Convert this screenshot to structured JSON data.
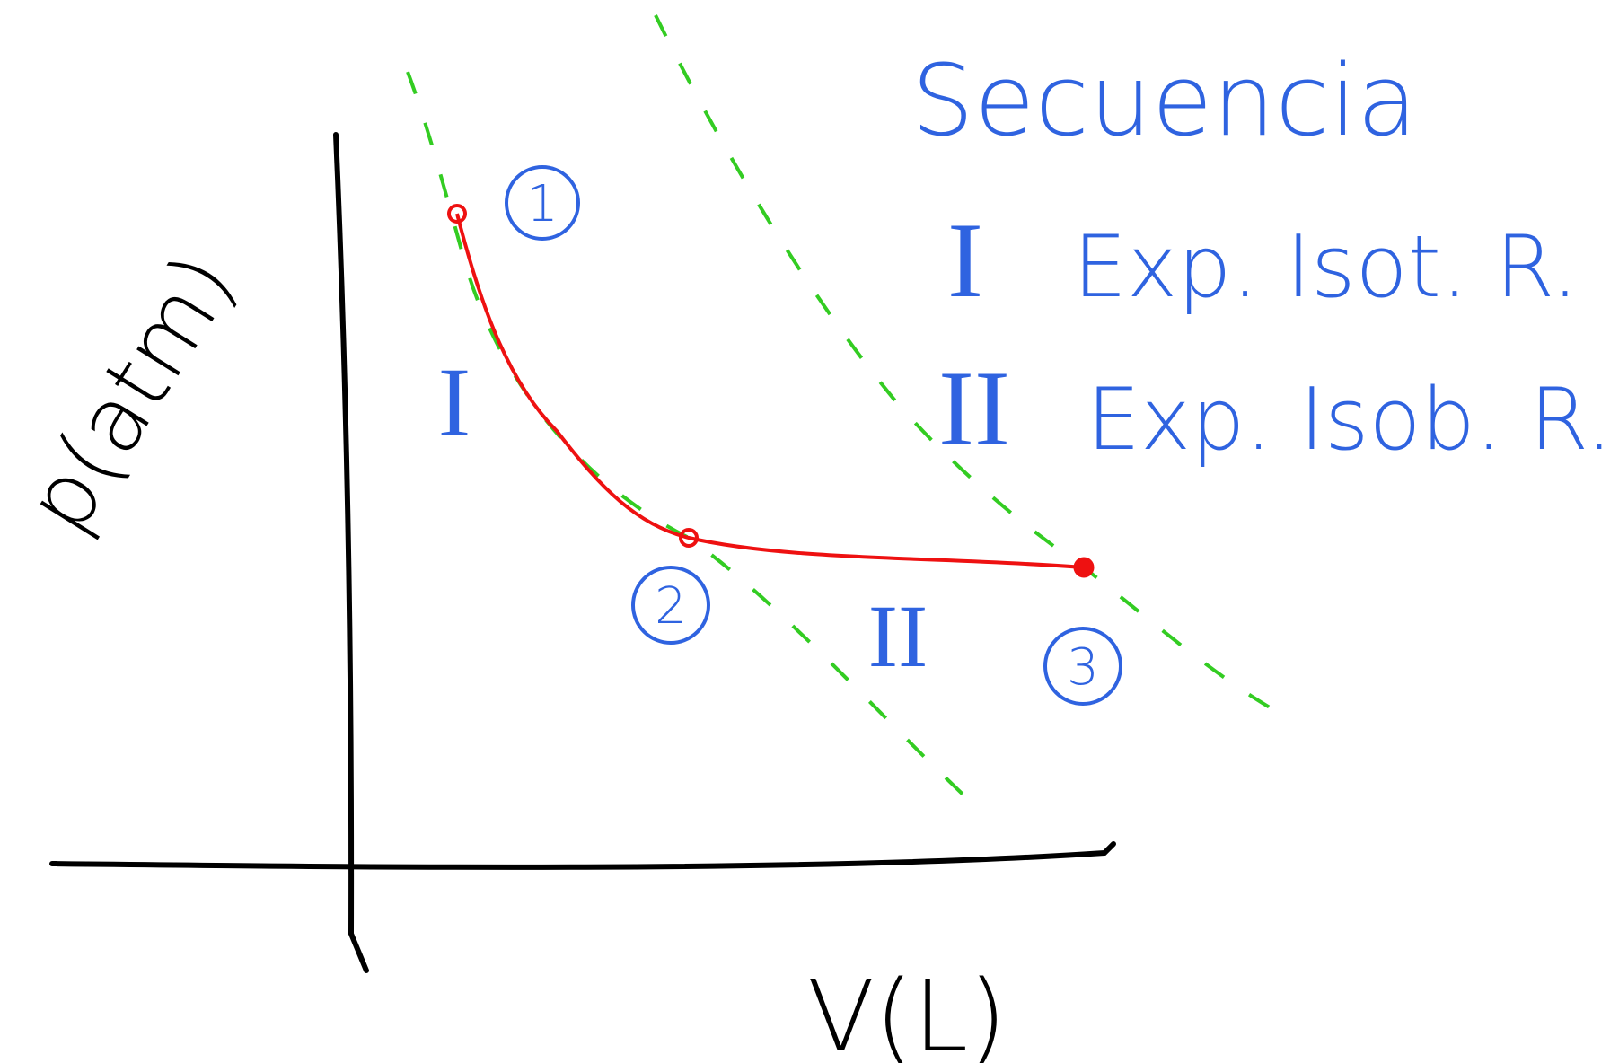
{
  "axes": {
    "y_label": "p(atm)",
    "x_label": "V(L)"
  },
  "states": [
    {
      "label": "1"
    },
    {
      "label": "2"
    },
    {
      "label": "3"
    }
  ],
  "processes": [
    {
      "label": "I"
    },
    {
      "label": "II"
    }
  ],
  "sequence": {
    "title": "Secuencia",
    "steps": [
      {
        "numeral": "I",
        "text": "Exp. Isot. R."
      },
      {
        "numeral": "II",
        "text": "Exp. Isob. R."
      }
    ]
  }
}
